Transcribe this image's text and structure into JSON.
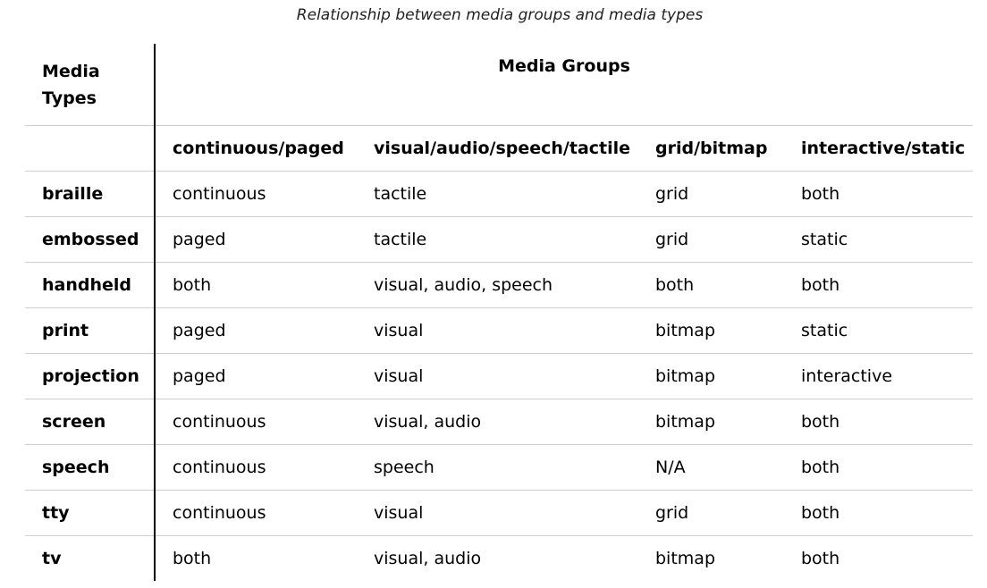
{
  "caption": "Relationship between media groups and media types",
  "table": {
    "corner_header": "Media Types",
    "groups_header": "Media Groups",
    "columns": [
      "continuous/paged",
      "visual/audio/speech/tactile",
      "grid/bitmap",
      "interactive/static"
    ],
    "rows": [
      {
        "type": "braille",
        "cells": [
          "continuous",
          "tactile",
          "grid",
          "both"
        ]
      },
      {
        "type": "embossed",
        "cells": [
          "paged",
          "tactile",
          "grid",
          "static"
        ]
      },
      {
        "type": "handheld",
        "cells": [
          "both",
          "visual, audio, speech",
          "both",
          "both"
        ]
      },
      {
        "type": "print",
        "cells": [
          "paged",
          "visual",
          "bitmap",
          "static"
        ]
      },
      {
        "type": "projection",
        "cells": [
          "paged",
          "visual",
          "bitmap",
          "interactive"
        ]
      },
      {
        "type": "screen",
        "cells": [
          "continuous",
          "visual, audio",
          "bitmap",
          "both"
        ]
      },
      {
        "type": "speech",
        "cells": [
          "continuous",
          "speech",
          "N/A",
          "both"
        ]
      },
      {
        "type": "tty",
        "cells": [
          "continuous",
          "visual",
          "grid",
          "both"
        ]
      },
      {
        "type": "tv",
        "cells": [
          "both",
          "visual, audio",
          "bitmap",
          "both"
        ]
      }
    ]
  }
}
